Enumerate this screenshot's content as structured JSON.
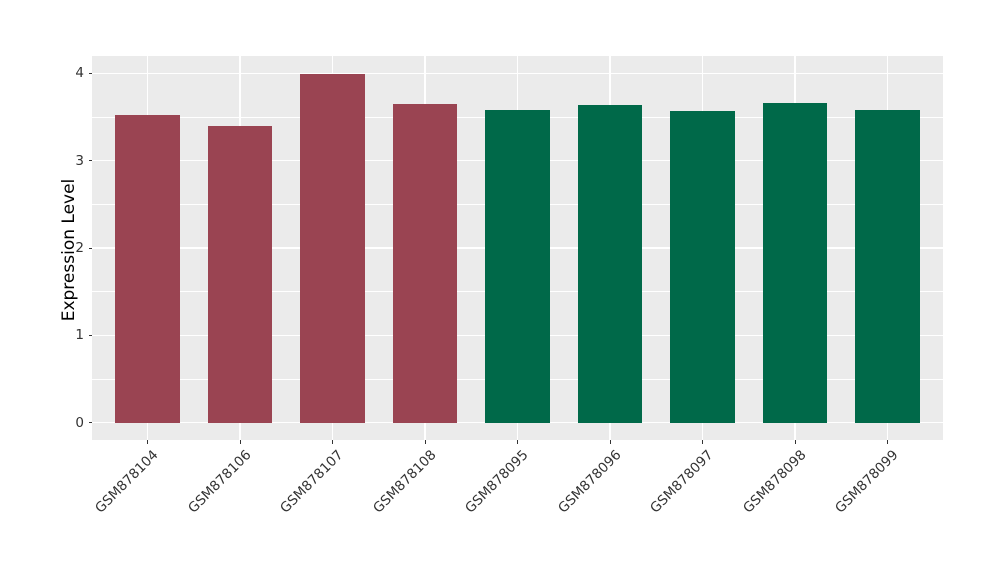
{
  "figure": {
    "background_color": "#FFFFFF",
    "panel_background_color": "#EBEBEB",
    "gridline_color": "#FFFFFF",
    "tick_color": "#333333",
    "axis_text_color": "#333333",
    "axis_title_color": "#000000"
  },
  "chart_data": {
    "type": "bar",
    "title": "",
    "xlabel": "",
    "ylabel": "Expression Level",
    "categories": [
      "GSM878104",
      "GSM878106",
      "GSM878107",
      "GSM878108",
      "GSM878095",
      "GSM878096",
      "GSM878097",
      "GSM878098",
      "GSM878099"
    ],
    "values": [
      3.52,
      3.4,
      3.99,
      3.65,
      3.58,
      3.64,
      3.57,
      3.66,
      3.58
    ],
    "bar_colors": [
      "#9A4452",
      "#9A4452",
      "#9A4452",
      "#9A4452",
      "#006949",
      "#006949",
      "#006949",
      "#006949",
      "#006949"
    ],
    "group_colors": {
      "red_group": "#9A4452",
      "green_group": "#006949"
    },
    "ylim": [
      0,
      4
    ],
    "yticks": [
      0,
      1,
      2,
      3,
      4
    ],
    "minor_yticks": [
      0.5,
      1.5,
      2.5,
      3.5
    ],
    "grid": true,
    "legend": false,
    "x_label_angle_deg": 45
  }
}
